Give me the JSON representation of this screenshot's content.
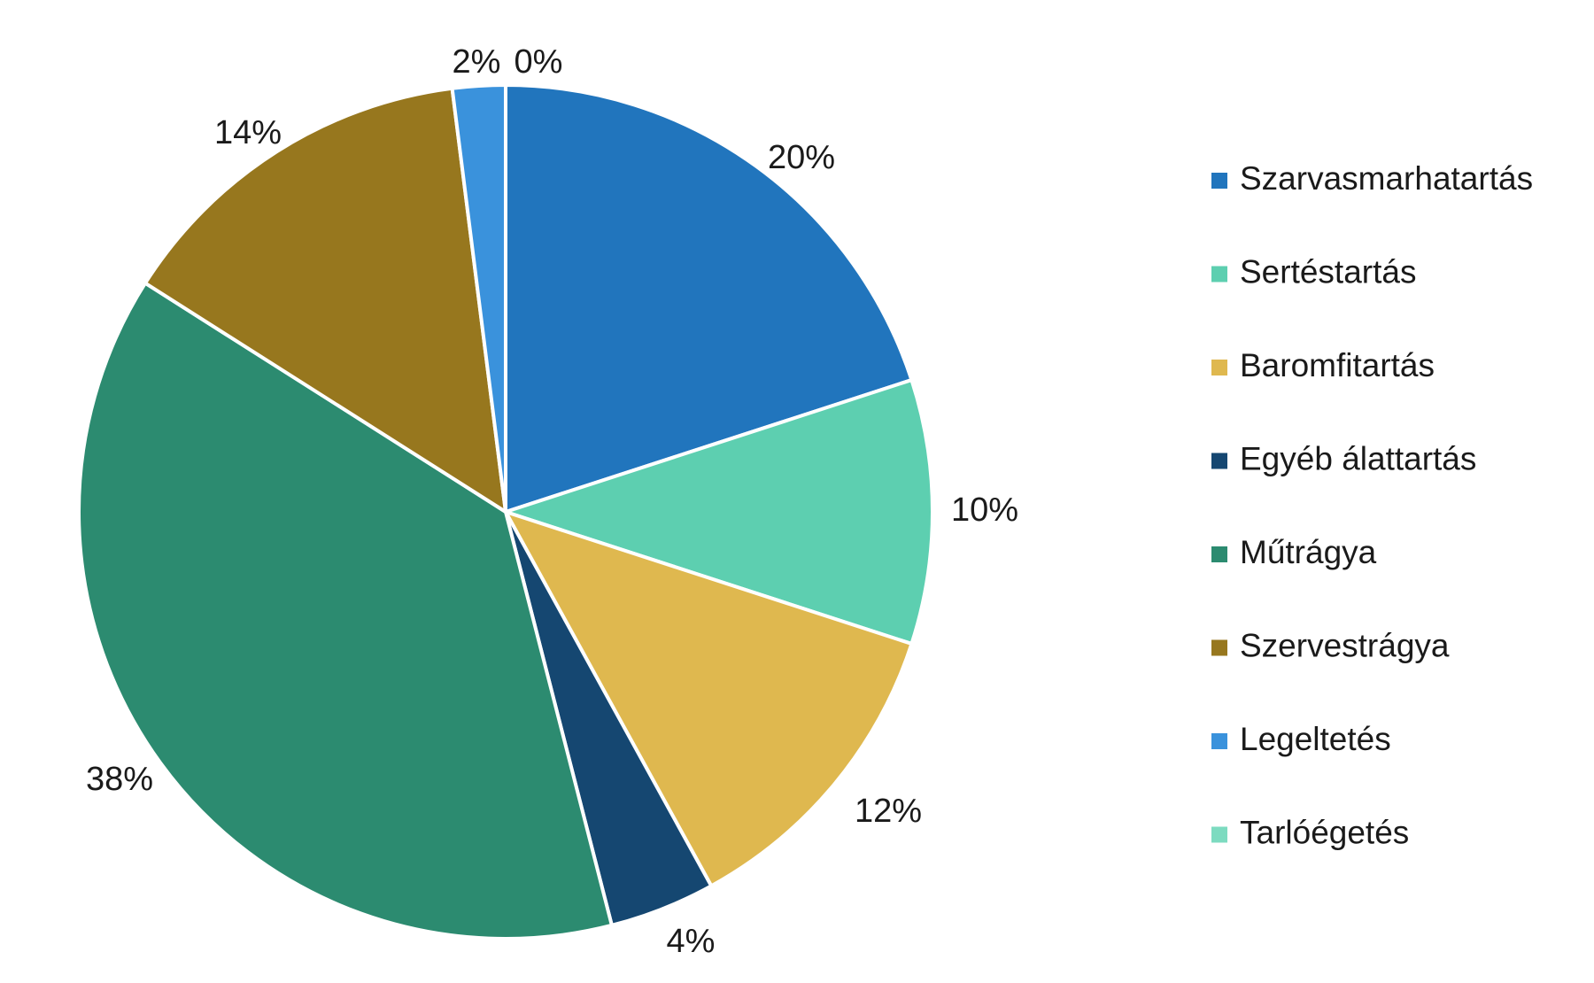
{
  "chart_data": {
    "type": "pie",
    "title": "",
    "categories": [
      "Szarvasmarhatartás",
      "Sertéstartás",
      "Baromfitartás",
      "Egyéb álattartás",
      "Műtrágya",
      "Szervestrágya",
      "Legeltetés",
      "Tarlóégetés"
    ],
    "values": [
      20,
      10,
      12,
      4,
      38,
      14,
      2,
      0
    ],
    "value_labels": [
      "20%",
      "10%",
      "12%",
      "4%",
      "38%",
      "14%",
      "2%",
      "0%"
    ],
    "colors": [
      "#2175BD",
      "#5DCFB0",
      "#DFB84F",
      "#154771",
      "#2C8B70",
      "#97771E",
      "#3A92DC",
      "#7DDBC0"
    ],
    "start": "12 o'clock",
    "direction": "clockwise",
    "legend_position": "right"
  }
}
